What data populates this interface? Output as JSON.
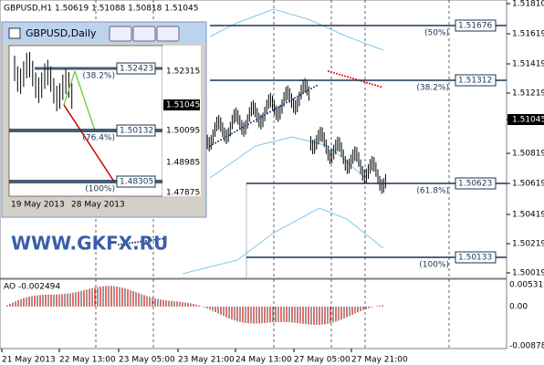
{
  "main_chart": {
    "header": "GBPUSD,H1  1.50619 1.51088 1.50818 1.51045",
    "price_labels": [
      "1.51810",
      "1.51619",
      "1.51419",
      "1.51219",
      "1.51045",
      "1.50819",
      "1.50619",
      "1.50419",
      "1.50219",
      "1.50019"
    ],
    "fib_levels": [
      {
        "price": "1.51676",
        "ratio": "(50%)"
      },
      {
        "price": "1.51312",
        "ratio": "(38.2%)"
      },
      {
        "price": "1.50623",
        "ratio": "(61.8%)"
      },
      {
        "price": "1.50133",
        "ratio": "(100%)"
      }
    ],
    "watermark": "WWW.GKFX.RU"
  },
  "indicator": {
    "label": "AO -0.002494",
    "axis_labels": [
      "0.005319",
      "0.00",
      "-0.00878"
    ]
  },
  "time_labels": [
    "21 May 2013",
    "22 May 13:00",
    "23 May 05:00",
    "23 May 21:00",
    "24 May 13:00",
    "27 May 05:00",
    "27 May 21:00"
  ],
  "inset_window": {
    "title": "GBPUSD,Daily",
    "price_labels": [
      "1.52315",
      "1.51045",
      "1.50095",
      "1.48985",
      "1.47875"
    ],
    "fib_levels": [
      {
        "price": "1.52423",
        "ratio": "(38.2%)"
      },
      {
        "price": "1.50132",
        "ratio": "(76.4%)"
      },
      {
        "price": "1.48305",
        "ratio": "(100%)"
      }
    ],
    "time_labels": [
      "19 May 2013",
      "28 May 2013"
    ]
  }
}
